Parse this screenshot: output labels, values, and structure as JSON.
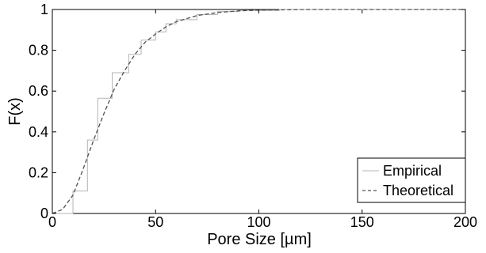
{
  "chart_data": {
    "type": "line",
    "xlabel": "Pore Size [µm]",
    "ylabel": "F(x)",
    "xlim": [
      0,
      200
    ],
    "ylim": [
      0,
      1
    ],
    "xticks": [
      0,
      50,
      100,
      150,
      200
    ],
    "yticks": [
      0,
      0.2,
      0.4,
      0.6,
      0.8,
      1
    ],
    "xtick_labels": [
      "0",
      "50",
      "100",
      "150",
      "200"
    ],
    "ytick_labels": [
      "0",
      "0.2",
      "0.4",
      "0.6",
      "0.8",
      "1"
    ],
    "grid": false,
    "legend_position": "bottom-right",
    "series": [
      {
        "name": "Empirical",
        "style": "step",
        "color": "#b4b4b4",
        "x": [
          0,
          10,
          17,
          22,
          29,
          37,
          43,
          50,
          55,
          60,
          70,
          80,
          90,
          110,
          200
        ],
        "y": [
          0,
          0.11,
          0.36,
          0.565,
          0.69,
          0.78,
          0.85,
          0.89,
          0.93,
          0.95,
          0.975,
          0.99,
          0.995,
          1.0,
          1.0
        ]
      },
      {
        "name": "Theoretical",
        "style": "dashed",
        "color": "#505050",
        "x": [
          0,
          5,
          10,
          15,
          20,
          25,
          30,
          35,
          40,
          45,
          50,
          55,
          60,
          70,
          80,
          90,
          100,
          125,
          150,
          175,
          200
        ],
        "y": [
          0,
          0.02,
          0.09,
          0.22,
          0.36,
          0.49,
          0.61,
          0.7,
          0.78,
          0.84,
          0.88,
          0.915,
          0.94,
          0.97,
          0.985,
          0.993,
          0.997,
          1.0,
          1.0,
          1.0,
          1.0
        ]
      }
    ]
  }
}
